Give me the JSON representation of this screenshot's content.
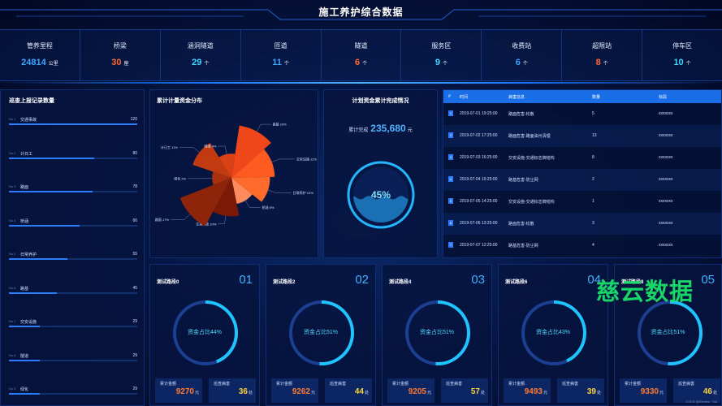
{
  "header": {
    "title": "施工养护综合数据"
  },
  "stats": [
    {
      "label": "管养里程",
      "value": "24814",
      "unit": "公里",
      "color": "#3ea3ff"
    },
    {
      "label": "桥梁",
      "value": "30",
      "unit": "座",
      "color": "#ff6a2e"
    },
    {
      "label": "涵洞隧道",
      "value": "29",
      "unit": "个",
      "color": "#3fd7ff"
    },
    {
      "label": "匝道",
      "value": "11",
      "unit": "个",
      "color": "#3ea3ff"
    },
    {
      "label": "隧道",
      "value": "6",
      "unit": "个",
      "color": "#ff6a2e"
    },
    {
      "label": "服务区",
      "value": "9",
      "unit": "个",
      "color": "#3fd7ff"
    },
    {
      "label": "收费站",
      "value": "6",
      "unit": "个",
      "color": "#3ea3ff"
    },
    {
      "label": "超限站",
      "value": "8",
      "unit": "个",
      "color": "#ff6a2e"
    },
    {
      "label": "停车区",
      "value": "10",
      "unit": "个",
      "color": "#3fd7ff"
    }
  ],
  "left": {
    "title": "巡查上报记录数量",
    "items": [
      {
        "no": "No.1",
        "name": "交通事故",
        "value": 120
      },
      {
        "no": "No.2",
        "name": "计日工",
        "value": 80
      },
      {
        "no": "No.3",
        "name": "路面",
        "value": 78
      },
      {
        "no": "No.4",
        "name": "桥涵",
        "value": 66
      },
      {
        "no": "No.5",
        "name": "日常养护",
        "value": 55
      },
      {
        "no": "No.6",
        "name": "路基",
        "value": 45
      },
      {
        "no": "No.7",
        "name": "交安设施",
        "value": 29
      },
      {
        "no": "No.8",
        "name": "隧道",
        "value": 29
      },
      {
        "no": "No.9",
        "name": "绿化",
        "value": 29
      }
    ],
    "max": 120
  },
  "pie": {
    "title": "累计计量资金分布",
    "slices": [
      {
        "name": "路基",
        "pct": "16%",
        "value": 16,
        "color": "#f0471a"
      },
      {
        "name": "交安设施",
        "pct": "12%",
        "value": 12,
        "color": "#ff5a1f"
      },
      {
        "name": "日常养护",
        "pct": "10%",
        "value": 10,
        "color": "#ff6b2a"
      },
      {
        "name": "桥涵",
        "pct": "5%",
        "value": 5,
        "color": "#ff8a5c"
      },
      {
        "name": "交通事故",
        "pct": "10%",
        "value": 10,
        "color": "#7a1a06"
      },
      {
        "name": "路面",
        "pct": "17%",
        "value": 17,
        "color": "#8e2409"
      },
      {
        "name": "绿化",
        "pct": "2%",
        "value": 2,
        "color": "#a8300f"
      },
      {
        "name": "计日工",
        "pct": "11%",
        "value": 11,
        "color": "#c23a10"
      },
      {
        "name": "隧道",
        "pct": "4%",
        "value": 4,
        "color": "#d94214"
      }
    ]
  },
  "fund": {
    "title": "计划资金累计完成情况",
    "label": "累计完成",
    "value": "235,680",
    "unit": "元",
    "percent_text": "45%",
    "percent": 0.45
  },
  "table": {
    "headers": [
      "#",
      "时间",
      "病害信息",
      "数量",
      "标段"
    ],
    "rows": [
      {
        "idx": "1",
        "time": "2019-07-01 19:25:00",
        "info": "路面危害-松散",
        "count": "5",
        "section": "xxxxxxx"
      },
      {
        "idx": "2",
        "time": "2019-07-02 17:25:00",
        "info": "路面危害-路面油污清理",
        "count": "13",
        "section": "xxxxxxx"
      },
      {
        "idx": "3",
        "time": "2019-07-03 16:25:00",
        "info": "交安设施-交通标志牌结构",
        "count": "8",
        "section": "xxxxxxx"
      },
      {
        "idx": "4",
        "time": "2019-07-04 15:25:00",
        "info": "路基危害-防尘网",
        "count": "2",
        "section": "xxxxxxx"
      },
      {
        "idx": "5",
        "time": "2019-07-05 14:25:00",
        "info": "交安设施-交通标志牌结构",
        "count": "1",
        "section": "xxxxxxx"
      },
      {
        "idx": "6",
        "time": "2019-07-06 13:25:00",
        "info": "路面危害-松散",
        "count": "3",
        "section": "xxxxxxx"
      },
      {
        "idx": "7",
        "time": "2019-07-07 12:25:00",
        "info": "路基危害-防尘网",
        "count": "4",
        "section": "xxxxxxx"
      }
    ]
  },
  "cards": [
    {
      "title": "测试路段0",
      "num": "01",
      "ring": "资金占比44%",
      "pct": 0.44,
      "amount_label": "累计金额",
      "amount": "9270",
      "amount_unit": "元",
      "issue_label": "巡查病害",
      "issue": "36",
      "issue_unit": "处"
    },
    {
      "title": "测试路段2",
      "num": "02",
      "ring": "资金占比51%",
      "pct": 0.51,
      "amount_label": "累计金额",
      "amount": "9262",
      "amount_unit": "元",
      "issue_label": "巡查病害",
      "issue": "44",
      "issue_unit": "处"
    },
    {
      "title": "测试路段4",
      "num": "03",
      "ring": "资金占比51%",
      "pct": 0.51,
      "amount_label": "累计金额",
      "amount": "9205",
      "amount_unit": "元",
      "issue_label": "巡查病害",
      "issue": "57",
      "issue_unit": "处"
    },
    {
      "title": "测试路段6",
      "num": "04",
      "ring": "资金占比43%",
      "pct": 0.43,
      "amount_label": "累计金额",
      "amount": "9493",
      "amount_unit": "元",
      "issue_label": "巡查病害",
      "issue": "39",
      "issue_unit": "处"
    },
    {
      "title": "测试路段8",
      "num": "05",
      "ring": "资金占比51%",
      "pct": 0.51,
      "amount_label": "累计金额",
      "amount": "9330",
      "amount_unit": "元",
      "issue_label": "巡查病害",
      "issue": "46",
      "issue_unit": "处"
    }
  ],
  "watermark": "慈云数据",
  "credit": "CSDN @Review · Vol"
}
